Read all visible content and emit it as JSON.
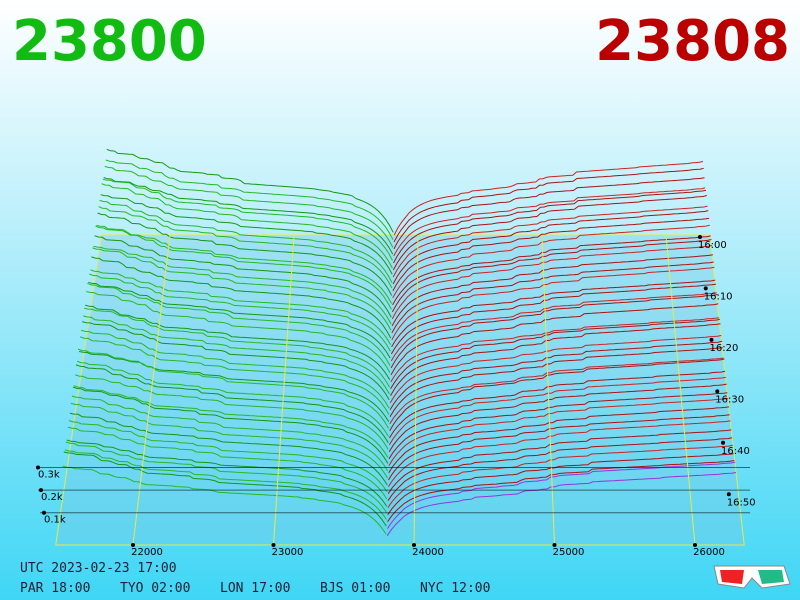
{
  "header": {
    "best_bid": "23800",
    "best_ask": "23808"
  },
  "price_axis": {
    "ticks": [
      22000,
      23000,
      24000,
      25000,
      26000
    ]
  },
  "depth_axis": {
    "ticks": [
      {
        "value": 100,
        "label": "0.1k"
      },
      {
        "value": 200,
        "label": "0.2k"
      },
      {
        "value": 300,
        "label": "0.3k"
      }
    ]
  },
  "time_axis": {
    "ticks": [
      "16:00",
      "16:10",
      "16:20",
      "16:30",
      "16:40",
      "16:50"
    ]
  },
  "footer": {
    "utc": "UTC 2023-02-23 17:00",
    "cities": [
      "PAR 18:00",
      "TYO 02:00",
      "LON 17:00",
      "BJS 01:00",
      "NYC 12:00"
    ]
  }
}
